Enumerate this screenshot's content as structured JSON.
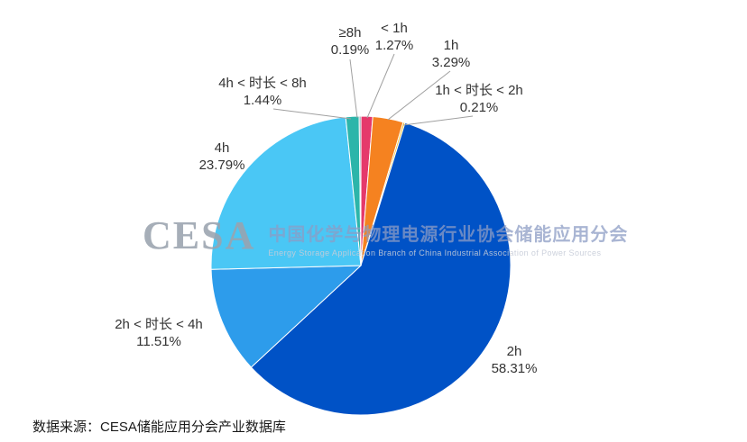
{
  "chart_data": {
    "type": "pie",
    "title": "",
    "unit": "%",
    "start_angle": "12-oclock",
    "direction": "clockwise",
    "legend_position": "none",
    "series": [
      {
        "label": "< 1h",
        "value": 1.27,
        "pct_label": "1.27%",
        "color": "#e5396b"
      },
      {
        "label": "1h",
        "value": 3.29,
        "pct_label": "3.29%",
        "color": "#f58220"
      },
      {
        "label": "1h < 时长 < 2h",
        "value": 0.21,
        "pct_label": "0.21%",
        "color": "#f2c037"
      },
      {
        "label": "2h",
        "value": 58.31,
        "pct_label": "58.31%",
        "color": "#0052c6"
      },
      {
        "label": "2h < 时长 < 4h",
        "value": 11.51,
        "pct_label": "11.51%",
        "color": "#2d9ceb"
      },
      {
        "label": "4h",
        "value": 23.79,
        "pct_label": "23.79%",
        "color": "#4ac7f5"
      },
      {
        "label": "4h < 时长 < 8h",
        "value": 1.44,
        "pct_label": "1.44%",
        "color": "#2cb5aa"
      },
      {
        "label": "≥8h",
        "value": 0.19,
        "pct_label": "0.19%",
        "color": "#8a9aa6"
      }
    ]
  },
  "watermark": {
    "logo_text": "CESA",
    "title_cn": "中国化学与物理电源行业协会储能应用分会",
    "subtitle_en": "Energy Storage Application Branch of China Industrial Association of Power Sources"
  },
  "source_note": "数据来源：CESA储能应用分会产业数据库"
}
